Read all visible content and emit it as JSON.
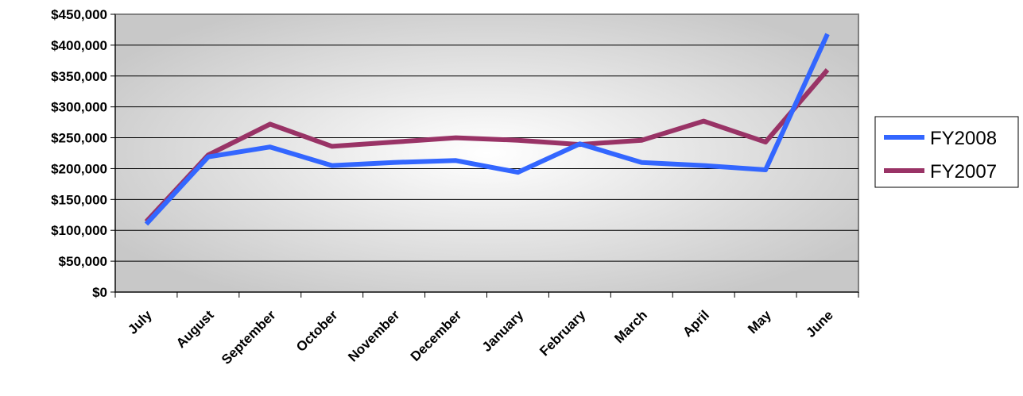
{
  "chart_data": {
    "type": "line",
    "title": "",
    "xlabel": "",
    "ylabel": "",
    "categories": [
      "July",
      "August",
      "September",
      "October",
      "November",
      "December",
      "January",
      "February",
      "March",
      "April",
      "May",
      "June"
    ],
    "ylim": [
      0,
      450000
    ],
    "y_ticks": [
      "$0",
      "$50,000",
      "$100,000",
      "$150,000",
      "$200,000",
      "$250,000",
      "$300,000",
      "$350,000",
      "$400,000",
      "$450,000"
    ],
    "grid": true,
    "legend_position": "right",
    "series": [
      {
        "name": "FY2008",
        "color": "#3366ff",
        "values": [
          110000,
          219000,
          235000,
          205000,
          210000,
          213000,
          194000,
          240000,
          210000,
          205000,
          198000,
          418000
        ]
      },
      {
        "name": "FY2007",
        "color": "#993366",
        "values": [
          114000,
          222000,
          272000,
          236000,
          243000,
          250000,
          246000,
          239000,
          246000,
          277000,
          243000,
          360000
        ]
      }
    ]
  }
}
